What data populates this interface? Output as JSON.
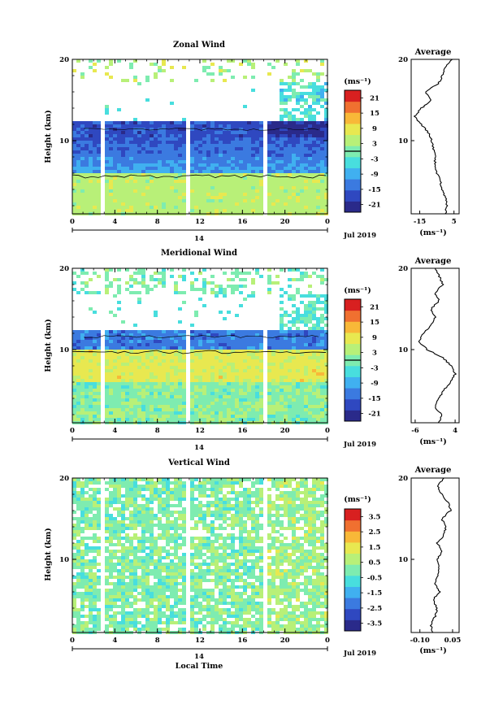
{
  "figure": {
    "date_label": "Jul 2019",
    "day_label": "14",
    "xlabel": "Local Time",
    "avg_title": "Average",
    "unit_label": "(ms⁻¹)",
    "colorbar_unit": "(ms⁻¹)",
    "ylabel": "Height (km)",
    "x_ticks": [
      "0",
      "4",
      "8",
      "12",
      "16",
      "20",
      "0"
    ],
    "y_ticks": [
      "10",
      "20"
    ],
    "colormap": [
      "#2a2a8a",
      "#2f48c0",
      "#3b7ae0",
      "#40b0f0",
      "#48dede",
      "#7eecb0",
      "#b8f078",
      "#e8e850",
      "#f8b838",
      "#f07030",
      "#d82020"
    ]
  },
  "chart_data": [
    {
      "type": "heatmap",
      "title": "Zonal Wind",
      "ylabel": "Height (km)",
      "xlabel": "",
      "x_ticks": [
        "0",
        "4",
        "8",
        "12",
        "16",
        "20",
        "0"
      ],
      "y_ticks": [
        10,
        20
      ],
      "ylim": [
        1,
        20
      ],
      "colorbar_ticks": [
        "21",
        "15",
        "9",
        "3",
        "-3",
        "-9",
        "-15",
        "-21"
      ],
      "colorbar_range": [
        -24,
        24
      ],
      "zero_contour": true,
      "avg_profile": {
        "title": "Average",
        "xticks": [
          "-15",
          "5"
        ],
        "xlim": [
          -20,
          8
        ],
        "heights": [
          1,
          2,
          3,
          4,
          5,
          6,
          7,
          8,
          9,
          10,
          11,
          12,
          13,
          14,
          15,
          16,
          17,
          18,
          19,
          20
        ],
        "values": [
          0,
          1,
          0,
          -2,
          -3,
          -5,
          -6,
          -6,
          -7,
          -8,
          -10,
          -14,
          -18,
          -14,
          -8,
          -12,
          -4,
          -2,
          0,
          4
        ]
      }
    },
    {
      "type": "heatmap",
      "title": "Meridional Wind",
      "ylabel": "Height (km)",
      "xlabel": "",
      "x_ticks": [
        "0",
        "4",
        "8",
        "12",
        "16",
        "20",
        "0"
      ],
      "y_ticks": [
        10,
        20
      ],
      "ylim": [
        1,
        20
      ],
      "colorbar_ticks": [
        "21",
        "15",
        "9",
        "3",
        "-3",
        "-9",
        "-15",
        "-21"
      ],
      "colorbar_range": [
        -24,
        24
      ],
      "zero_contour": true,
      "avg_profile": {
        "title": "Average",
        "xticks": [
          "-6",
          "4"
        ],
        "xlim": [
          -7,
          5
        ],
        "heights": [
          1,
          2,
          3,
          4,
          5,
          6,
          7,
          8,
          9,
          10,
          11,
          12,
          13,
          14,
          15,
          16,
          17,
          18,
          19,
          20
        ],
        "values": [
          0,
          0.5,
          -1,
          0,
          1,
          3,
          4,
          3,
          1,
          -3,
          -5,
          -4,
          -2,
          -1,
          -2,
          0,
          -1,
          1,
          0,
          -1
        ]
      }
    },
    {
      "type": "heatmap",
      "title": "Vertical Wind",
      "ylabel": "Height (km)",
      "xlabel": "Local Time",
      "x_ticks": [
        "0",
        "4",
        "8",
        "12",
        "16",
        "20",
        "0"
      ],
      "y_ticks": [
        10,
        20
      ],
      "ylim": [
        1,
        20
      ],
      "colorbar_ticks": [
        "3.5",
        "2.5",
        "1.5",
        "0.5",
        "-0.5",
        "-1.5",
        "-2.5",
        "-3.5"
      ],
      "colorbar_range": [
        -4,
        4
      ],
      "zero_contour": false,
      "avg_profile": {
        "title": "Average",
        "xticks": [
          "-0.10",
          "0.05"
        ],
        "xlim": [
          -0.14,
          0.08
        ],
        "heights": [
          1,
          2,
          3,
          4,
          5,
          6,
          7,
          8,
          9,
          10,
          11,
          12,
          13,
          14,
          15,
          16,
          17,
          18,
          19,
          20
        ],
        "values": [
          -0.04,
          -0.05,
          -0.03,
          -0.02,
          -0.04,
          -0.01,
          -0.03,
          -0.02,
          -0.01,
          -0.02,
          0.0,
          -0.02,
          0.01,
          0.02,
          0.0,
          0.04,
          0.03,
          0.0,
          -0.02,
          0.01
        ]
      }
    }
  ]
}
